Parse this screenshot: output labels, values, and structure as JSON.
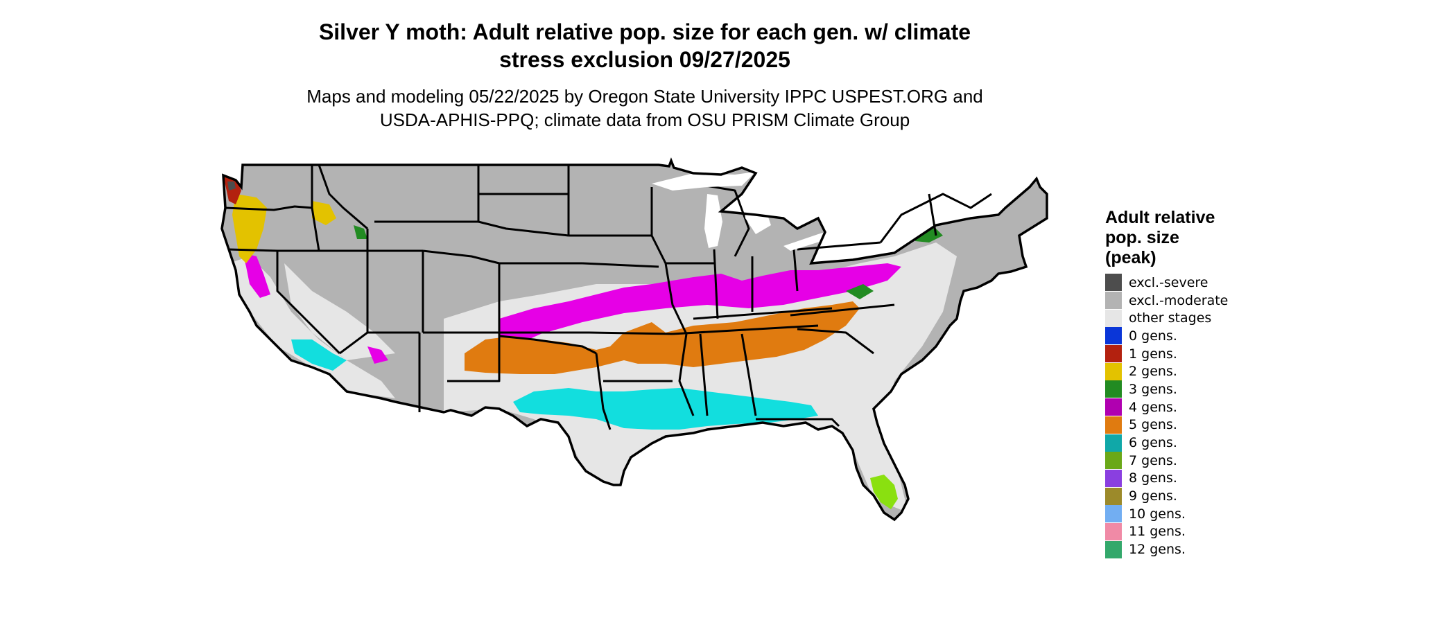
{
  "title": {
    "line1": "Silver Y moth: Adult relative pop. size for each gen. w/ climate",
    "line2": "stress exclusion 09/27/2025"
  },
  "subtitle": {
    "line1": "Maps and modeling 05/22/2025 by Oregon State University IPPC USPEST.ORG and",
    "line2": "USDA-APHIS-PPQ; climate data from OSU PRISM Climate Group"
  },
  "legend": {
    "title_line1": "Adult relative",
    "title_line2": "pop. size",
    "title_line3": "(peak)",
    "items": [
      {
        "label": "excl.-severe",
        "color": "#4d4d4d"
      },
      {
        "label": "excl.-moderate",
        "color": "#b3b3b3"
      },
      {
        "label": "other stages",
        "color": "#e6e6e6"
      },
      {
        "label": "0 gens.",
        "color": "#0a36d8"
      },
      {
        "label": "1 gens.",
        "color": "#b3210f"
      },
      {
        "label": "2 gens.",
        "color": "#e3c200"
      },
      {
        "label": "3 gens.",
        "color": "#228b22"
      },
      {
        "label": "4 gens.",
        "color": "#b000b0"
      },
      {
        "label": "5 gens.",
        "color": "#e07b10"
      },
      {
        "label": "6 gens.",
        "color": "#10a8a8"
      },
      {
        "label": "7 gens.",
        "color": "#6aa818"
      },
      {
        "label": "8 gens.",
        "color": "#8a3fe0"
      },
      {
        "label": "9 gens.",
        "color": "#9c8a2a"
      },
      {
        "label": "10 gens.",
        "color": "#72aef2"
      },
      {
        "label": "11 gens.",
        "color": "#f08aa6"
      },
      {
        "label": "12 gens.",
        "color": "#33a86b"
      }
    ]
  },
  "map_colors": {
    "excluded_moderate": "#b3b3b3",
    "other_stages": "#e6e6e6",
    "gen4_bright": "#e600e6",
    "gen5": "#e07b10",
    "gen6_bright": "#12dede",
    "gen7_bright": "#8ae010",
    "gen2": "#e3c200",
    "gen1": "#b3210f",
    "gen3": "#228b22",
    "excluded_severe": "#4d4d4d",
    "border": "#000000"
  }
}
